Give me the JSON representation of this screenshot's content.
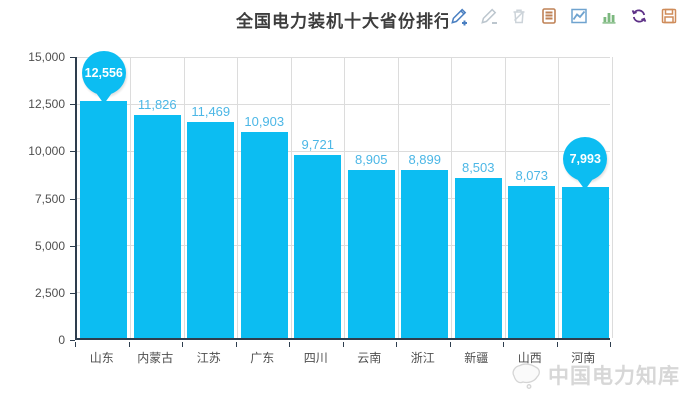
{
  "title": "全国电力装机十大省份排行",
  "toolbar": {
    "icons": [
      {
        "name": "edit-add-icon",
        "color": "#4a7fc1",
        "enabled": true
      },
      {
        "name": "edit-remove-icon",
        "color": "#bcc6ce",
        "enabled": false
      },
      {
        "name": "delete-icon",
        "color": "#ccd3d9",
        "enabled": false
      },
      {
        "name": "report-icon",
        "color": "#bf8256",
        "enabled": true
      },
      {
        "name": "line-chart-icon",
        "color": "#6fa3cf",
        "enabled": true
      },
      {
        "name": "bar-chart-icon",
        "color": "#7cb87f",
        "enabled": true
      },
      {
        "name": "refresh-icon",
        "color": "#5d3087",
        "enabled": true
      },
      {
        "name": "save-icon",
        "color": "#cf8c5a",
        "enabled": true
      }
    ]
  },
  "chart_data": {
    "type": "bar",
    "title": "全国电力装机十大省份排行",
    "categories": [
      "山东",
      "内蒙古",
      "江苏",
      "广东",
      "四川",
      "云南",
      "浙江",
      "新疆",
      "山西",
      "河南"
    ],
    "values": [
      12556,
      11826,
      11469,
      10903,
      9721,
      8905,
      8899,
      8503,
      8073,
      7993
    ],
    "value_labels": [
      "12,556",
      "11,826",
      "11,469",
      "10,903",
      "9,721",
      "8,905",
      "8,899",
      "8,503",
      "8,073",
      "7,993"
    ],
    "marked_indices": [
      0,
      9
    ],
    "xlabel": "",
    "ylabel": "",
    "ylim": [
      0,
      15000
    ],
    "ytick_values": [
      0,
      2500,
      5000,
      7500,
      10000,
      12500,
      15000
    ],
    "ytick_labels": [
      "0",
      "2,500",
      "5,000",
      "7,500",
      "10,000",
      "12,500",
      "15,000"
    ],
    "grid": true,
    "legend": false,
    "bar_color": "#0cbdf2",
    "value_label_color": "#4cb7e6",
    "axis_color": "#2e3e4e",
    "grid_color": "#dcdcdc"
  },
  "watermark": {
    "text": "中国电力知库",
    "logo": "china-map-logo"
  }
}
